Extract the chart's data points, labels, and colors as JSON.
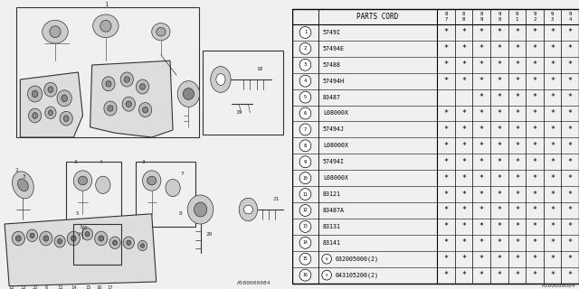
{
  "table_header": "PARTS CORD",
  "year_columns": [
    "8\n7",
    "8\n8",
    "8\n9",
    "9\n0",
    "9\n1",
    "9\n2",
    "9\n3",
    "9\n4"
  ],
  "rows": [
    {
      "num": 1,
      "part": "5749I",
      "prefix": "",
      "stars": [
        1,
        1,
        1,
        1,
        1,
        1,
        1,
        1
      ]
    },
    {
      "num": 2,
      "part": "57494E",
      "prefix": "",
      "stars": [
        1,
        1,
        1,
        1,
        1,
        1,
        1,
        1
      ]
    },
    {
      "num": 3,
      "part": "57488",
      "prefix": "",
      "stars": [
        1,
        1,
        1,
        1,
        1,
        1,
        1,
        1
      ]
    },
    {
      "num": 4,
      "part": "57494H",
      "prefix": "",
      "stars": [
        1,
        1,
        1,
        1,
        1,
        1,
        1,
        1
      ]
    },
    {
      "num": 5,
      "part": "83487",
      "prefix": "",
      "stars": [
        0,
        0,
        1,
        1,
        1,
        1,
        1,
        1
      ]
    },
    {
      "num": 6,
      "part": "L08000X",
      "prefix": "",
      "stars": [
        1,
        1,
        1,
        1,
        1,
        1,
        1,
        1
      ]
    },
    {
      "num": 7,
      "part": "57494J",
      "prefix": "",
      "stars": [
        1,
        1,
        1,
        1,
        1,
        1,
        1,
        1
      ]
    },
    {
      "num": 8,
      "part": "L08000X",
      "prefix": "",
      "stars": [
        1,
        1,
        1,
        1,
        1,
        1,
        1,
        1
      ]
    },
    {
      "num": 9,
      "part": "57494I",
      "prefix": "",
      "stars": [
        1,
        1,
        1,
        1,
        1,
        1,
        1,
        1
      ]
    },
    {
      "num": 10,
      "part": "L08000X",
      "prefix": "",
      "stars": [
        1,
        1,
        1,
        1,
        1,
        1,
        1,
        1
      ]
    },
    {
      "num": 11,
      "part": "83121",
      "prefix": "",
      "stars": [
        1,
        1,
        1,
        1,
        1,
        1,
        1,
        1
      ]
    },
    {
      "num": 12,
      "part": "83487A",
      "prefix": "",
      "stars": [
        1,
        1,
        1,
        1,
        1,
        1,
        1,
        1
      ]
    },
    {
      "num": 13,
      "part": "83131",
      "prefix": "",
      "stars": [
        1,
        1,
        1,
        1,
        1,
        1,
        1,
        1
      ]
    },
    {
      "num": 14,
      "part": "83141",
      "prefix": "",
      "stars": [
        1,
        1,
        1,
        1,
        1,
        1,
        1,
        1
      ]
    },
    {
      "num": 15,
      "part": "032005000(2)",
      "prefix": "V",
      "stars": [
        1,
        1,
        1,
        1,
        1,
        1,
        1,
        1
      ]
    },
    {
      "num": 16,
      "part": "043105200(2)",
      "prefix": "S",
      "stars": [
        1,
        1,
        1,
        1,
        1,
        1,
        1,
        1
      ]
    }
  ],
  "bg_color": "#f0f0f0",
  "table_bg": "#ffffff",
  "line_color": "#000000",
  "text_color": "#000000",
  "part_code": "A580000084"
}
